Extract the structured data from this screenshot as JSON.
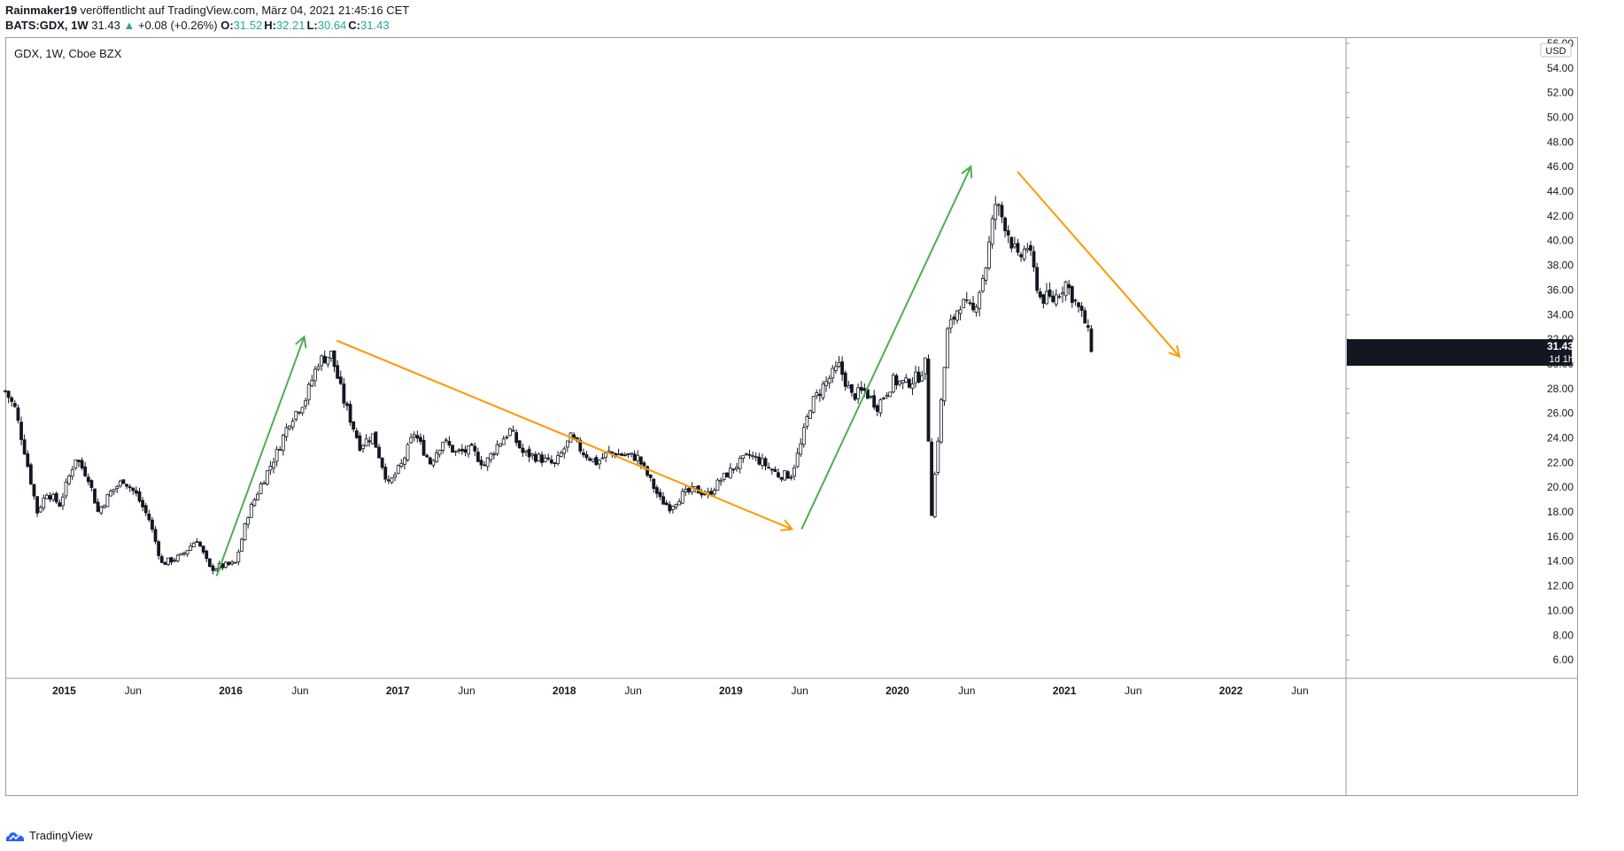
{
  "header": {
    "author": "Rainmaker19",
    "published": "veröffentlicht auf TradingView.com, März 04, 2021 21:45:16 CET",
    "ticker_line": "BATS:GDX, 1W",
    "last": "31.43",
    "change": "+0.08 (+0.26%)",
    "ohlc": [
      {
        "key": "O:",
        "value": "31.52"
      },
      {
        "key": "H:",
        "value": "32.21"
      },
      {
        "key": "L:",
        "value": "30.64"
      },
      {
        "key": "C:",
        "value": "31.43"
      }
    ]
  },
  "legend": {
    "symbol": "GDX, 1W, Cboe BZX"
  },
  "price_label": {
    "symbol": "GDX",
    "price": "31.43",
    "countdown": "1d 1h"
  },
  "footer": {
    "brand": "TradingView"
  },
  "colors": {
    "up_arrow": "#4caf50",
    "down_arrow": "#ff9800",
    "candle": "#131722",
    "price_tag": "#131722"
  },
  "chart_data": {
    "type": "candlestick",
    "title": "GDX, 1W, Cboe BZX",
    "y_unit": "USD",
    "ylim": [
      4.5,
      56.5
    ],
    "y_ticks": [
      "6.00",
      "8.00",
      "10.00",
      "12.00",
      "14.00",
      "16.00",
      "18.00",
      "20.00",
      "22.00",
      "24.00",
      "26.00",
      "28.00",
      "30.00",
      "32.00",
      "34.00",
      "36.00",
      "38.00",
      "40.00",
      "42.00",
      "44.00",
      "46.00",
      "48.00",
      "50.00",
      "52.00",
      "54.00",
      "56.00"
    ],
    "xlim": [
      "2014-08-25",
      "2022-09-10"
    ],
    "x_ticks": [
      {
        "date": "2015-01-01",
        "label": "2015"
      },
      {
        "date": "2015-06-01",
        "label": "Jun"
      },
      {
        "date": "2016-01-01",
        "label": "2016"
      },
      {
        "date": "2016-06-01",
        "label": "Jun"
      },
      {
        "date": "2017-01-01",
        "label": "2017"
      },
      {
        "date": "2017-06-01",
        "label": "Jun"
      },
      {
        "date": "2018-01-01",
        "label": "2018"
      },
      {
        "date": "2018-06-01",
        "label": "Jun"
      },
      {
        "date": "2019-01-01",
        "label": "2019"
      },
      {
        "date": "2019-06-01",
        "label": "Jun"
      },
      {
        "date": "2020-01-01",
        "label": "2020"
      },
      {
        "date": "2020-06-01",
        "label": "Jun"
      },
      {
        "date": "2021-01-01",
        "label": "2021"
      },
      {
        "date": "2021-06-01",
        "label": "Jun"
      },
      {
        "date": "2022-01-01",
        "label": "2022"
      },
      {
        "date": "2022-06-01",
        "label": "Jun"
      }
    ],
    "price_path": [
      [
        "2014-08-25",
        27.8
      ],
      [
        "2014-09-15",
        26.4
      ],
      [
        "2014-10-06",
        23.0
      ],
      [
        "2014-11-03",
        18.0
      ],
      [
        "2014-11-24",
        19.6
      ],
      [
        "2014-12-22",
        18.6
      ],
      [
        "2015-01-26",
        22.4
      ],
      [
        "2015-02-23",
        20.8
      ],
      [
        "2015-03-16",
        18.0
      ],
      [
        "2015-04-13",
        19.6
      ],
      [
        "2015-05-11",
        20.6
      ],
      [
        "2015-06-08",
        19.4
      ],
      [
        "2015-07-06",
        17.4
      ],
      [
        "2015-08-03",
        13.8
      ],
      [
        "2015-09-14",
        14.4
      ],
      [
        "2015-10-19",
        15.8
      ],
      [
        "2015-11-16",
        13.4
      ],
      [
        "2015-12-14",
        13.6
      ],
      [
        "2016-01-11",
        13.8
      ],
      [
        "2016-02-08",
        17.8
      ],
      [
        "2016-03-07",
        20.2
      ],
      [
        "2016-04-11",
        22.8
      ],
      [
        "2016-05-09",
        25.4
      ],
      [
        "2016-06-13",
        27.2
      ],
      [
        "2016-07-11",
        30.2
      ],
      [
        "2016-08-08",
        30.8
      ],
      [
        "2016-09-05",
        27.0
      ],
      [
        "2016-10-10",
        23.4
      ],
      [
        "2016-11-07",
        24.2
      ],
      [
        "2016-12-12",
        20.2
      ],
      [
        "2017-01-09",
        21.8
      ],
      [
        "2017-02-06",
        24.4
      ],
      [
        "2017-03-13",
        22.0
      ],
      [
        "2017-04-10",
        23.8
      ],
      [
        "2017-05-08",
        22.8
      ],
      [
        "2017-06-12",
        23.0
      ],
      [
        "2017-07-10",
        21.8
      ],
      [
        "2017-08-07",
        23.4
      ],
      [
        "2017-09-04",
        24.6
      ],
      [
        "2017-10-02",
        22.8
      ],
      [
        "2017-11-06",
        22.4
      ],
      [
        "2017-12-11",
        21.8
      ],
      [
        "2018-01-15",
        24.0
      ],
      [
        "2018-02-12",
        22.8
      ],
      [
        "2018-03-12",
        22.0
      ],
      [
        "2018-04-09",
        22.8
      ],
      [
        "2018-05-14",
        22.6
      ],
      [
        "2018-06-11",
        22.4
      ],
      [
        "2018-07-02",
        21.0
      ],
      [
        "2018-07-30",
        19.0
      ],
      [
        "2018-08-20",
        18.4
      ],
      [
        "2018-09-17",
        19.4
      ],
      [
        "2018-10-15",
        19.8
      ],
      [
        "2018-11-12",
        19.4
      ],
      [
        "2018-12-10",
        20.6
      ],
      [
        "2019-01-14",
        21.8
      ],
      [
        "2019-02-11",
        22.6
      ],
      [
        "2019-03-11",
        22.0
      ],
      [
        "2019-04-15",
        21.0
      ],
      [
        "2019-05-13",
        21.0
      ],
      [
        "2019-06-03",
        23.4
      ],
      [
        "2019-06-24",
        26.6
      ],
      [
        "2019-07-22",
        28.2
      ],
      [
        "2019-08-26",
        29.8
      ],
      [
        "2019-09-23",
        27.4
      ],
      [
        "2019-10-21",
        27.8
      ],
      [
        "2019-11-18",
        26.6
      ],
      [
        "2019-12-23",
        28.6
      ],
      [
        "2020-01-20",
        28.4
      ],
      [
        "2020-02-17",
        29.0
      ],
      [
        "2020-03-02",
        30.0
      ],
      [
        "2020-03-16",
        18.0
      ],
      [
        "2020-03-30",
        24.0
      ],
      [
        "2020-04-20",
        32.6
      ],
      [
        "2020-05-18",
        35.0
      ],
      [
        "2020-06-15",
        34.2
      ],
      [
        "2020-07-13",
        38.0
      ],
      [
        "2020-08-03",
        43.0
      ],
      [
        "2020-08-24",
        41.4
      ],
      [
        "2020-09-21",
        38.4
      ],
      [
        "2020-10-12",
        39.6
      ],
      [
        "2020-11-09",
        35.4
      ],
      [
        "2020-12-07",
        35.2
      ],
      [
        "2021-01-04",
        36.6
      ],
      [
        "2021-01-25",
        35.0
      ],
      [
        "2021-02-15",
        33.4
      ],
      [
        "2021-03-01",
        31.4
      ]
    ],
    "drawings": [
      {
        "type": "arrow",
        "color": "up",
        "from": [
          "2015-12-01",
          12.8
        ],
        "to": [
          "2016-06-10",
          32.2
        ]
      },
      {
        "type": "arrow",
        "color": "down",
        "from": [
          "2016-08-20",
          31.9
        ],
        "to": [
          "2019-05-15",
          16.6
        ]
      },
      {
        "type": "arrow",
        "color": "up",
        "from": [
          "2019-06-05",
          16.6
        ],
        "to": [
          "2020-06-10",
          46.0
        ]
      },
      {
        "type": "arrow",
        "color": "down",
        "from": [
          "2020-09-20",
          45.6
        ],
        "to": [
          "2021-09-10",
          30.6
        ]
      }
    ]
  }
}
